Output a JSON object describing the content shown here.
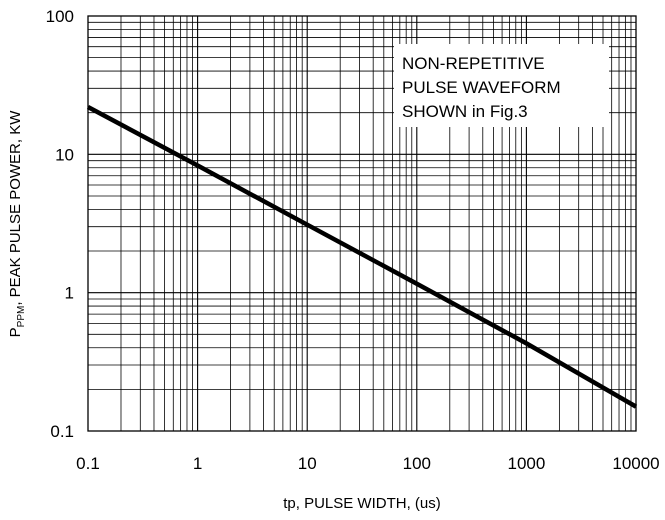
{
  "chart_data": {
    "type": "line",
    "x_scale": "log",
    "y_scale": "log",
    "xlim": [
      0.1,
      10000
    ],
    "ylim": [
      0.1,
      100
    ],
    "grid": true,
    "x_ticks": [
      "0.1",
      "1",
      "10",
      "100",
      "1000",
      "10000"
    ],
    "y_ticks": [
      "0.1",
      "1",
      "10",
      "100"
    ],
    "xlabel": "tp, PULSE WIDTH, (us)",
    "ylabel": {
      "main": "P",
      "subscript": "PPM",
      "rest": ", PEAK PULSE POWER, KW"
    },
    "annotation": [
      "NON-REPETITIVE",
      "PULSE WAVEFORM",
      "SHOWN in Fig.3"
    ],
    "annotation_position": "top-right",
    "series": [
      {
        "x": [
          0.1,
          1,
          10,
          100,
          1000,
          10000
        ],
        "y": [
          22,
          8.3,
          3.1,
          1.16,
          0.43,
          0.15
        ]
      }
    ],
    "colors": {
      "line": "#000000",
      "grid": "#000000",
      "background": "#ffffff"
    }
  }
}
